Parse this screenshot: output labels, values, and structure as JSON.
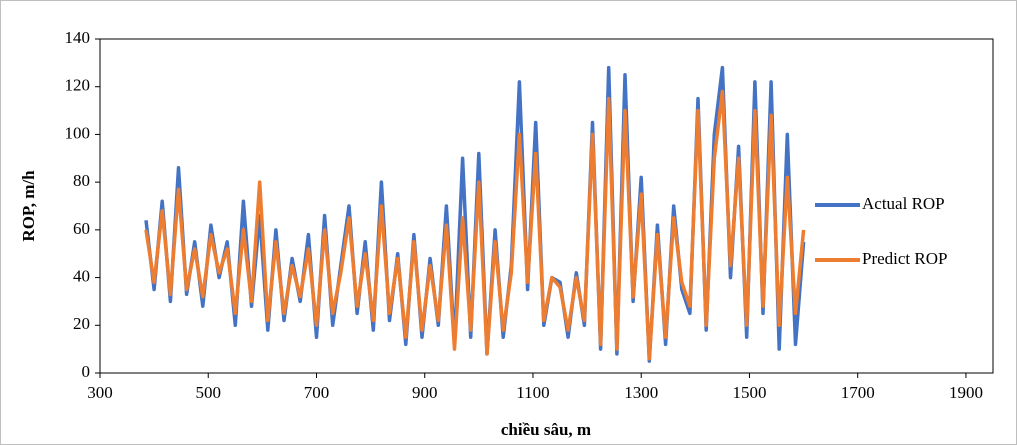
{
  "chart_data": {
    "type": "line",
    "xlabel": "chiều sâu, m",
    "ylabel": "ROP, m/h",
    "x": [
      385,
      400,
      415,
      430,
      445,
      460,
      475,
      490,
      505,
      520,
      535,
      550,
      565,
      580,
      595,
      610,
      625,
      640,
      655,
      670,
      685,
      700,
      715,
      730,
      745,
      760,
      775,
      790,
      805,
      820,
      835,
      850,
      865,
      880,
      895,
      910,
      925,
      940,
      955,
      970,
      985,
      1000,
      1015,
      1030,
      1045,
      1060,
      1075,
      1090,
      1105,
      1120,
      1135,
      1150,
      1165,
      1180,
      1195,
      1210,
      1225,
      1240,
      1255,
      1270,
      1285,
      1300,
      1315,
      1330,
      1345,
      1360,
      1375,
      1390,
      1405,
      1420,
      1435,
      1450,
      1465,
      1480,
      1495,
      1510,
      1525,
      1540,
      1555,
      1570,
      1585,
      1600
    ],
    "series": [
      {
        "name": "Actual ROP",
        "color": "#4472c4",
        "values": [
          64,
          35,
          72,
          30,
          86,
          33,
          55,
          28,
          62,
          40,
          55,
          20,
          72,
          28,
          66,
          18,
          60,
          22,
          48,
          30,
          58,
          15,
          66,
          20,
          45,
          70,
          25,
          55,
          18,
          80,
          22,
          50,
          12,
          58,
          15,
          48,
          20,
          70,
          12,
          90,
          15,
          92,
          8,
          60,
          15,
          45,
          122,
          35,
          105,
          20,
          40,
          38,
          15,
          42,
          20,
          105,
          10,
          128,
          8,
          125,
          30,
          82,
          5,
          62,
          12,
          70,
          35,
          25,
          115,
          18,
          100,
          128,
          40,
          95,
          15,
          122,
          25,
          122,
          10,
          100,
          12,
          55
        ]
      },
      {
        "name": "Predict ROP",
        "color": "#ed7d31",
        "values": [
          60,
          38,
          68,
          33,
          77,
          35,
          52,
          32,
          58,
          42,
          52,
          25,
          60,
          30,
          80,
          22,
          55,
          25,
          45,
          32,
          52,
          20,
          60,
          25,
          42,
          65,
          28,
          50,
          22,
          70,
          25,
          48,
          15,
          55,
          18,
          45,
          22,
          62,
          10,
          65,
          18,
          80,
          8,
          55,
          18,
          42,
          100,
          38,
          92,
          22,
          40,
          36,
          18,
          40,
          22,
          100,
          12,
          115,
          10,
          110,
          32,
          75,
          6,
          58,
          15,
          65,
          38,
          28,
          110,
          20,
          90,
          118,
          45,
          90,
          20,
          110,
          28,
          108,
          20,
          82,
          25,
          60
        ]
      }
    ],
    "xlim": [
      300,
      1950
    ],
    "xticks": [
      300,
      500,
      700,
      900,
      1100,
      1300,
      1500,
      1700,
      1900
    ],
    "ylim": [
      0,
      140
    ],
    "yticks": [
      0,
      20,
      40,
      60,
      80,
      100,
      120,
      140
    ],
    "grid": false,
    "legend": "right"
  }
}
